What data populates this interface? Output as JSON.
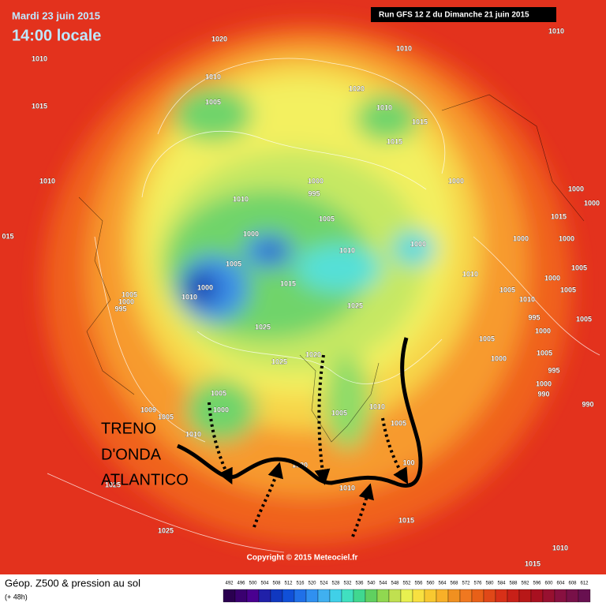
{
  "header": {
    "date": "Mardi 23 juin 2015",
    "time": "14:00 locale",
    "run": "Run GFS 12 Z du Dimanche 21 juin 2015"
  },
  "annotation": [
    "TRENO",
    "D'ONDA",
    "ATLANTICO"
  ],
  "pressure_labels": [
    "1010",
    "1020",
    "1010",
    "1010",
    "1015",
    "1010",
    "1005",
    "1020",
    "1010",
    "1015",
    "1015",
    "1010",
    "1000",
    "995",
    "1010",
    "1000",
    "1000",
    "1000",
    "1005",
    "1015",
    "015",
    "1000",
    "1000",
    "1000",
    "1000",
    "1010",
    "1005",
    "1000",
    "1015",
    "1010",
    "1005",
    "1000",
    "1005",
    "1000",
    "995",
    "1025",
    "1005",
    "1010",
    "1005",
    "1010",
    "1025",
    "995",
    "1005",
    "1005",
    "1000",
    "1020",
    "1025",
    "1000",
    "1005",
    "995",
    "1000",
    "990",
    "1005",
    "1000",
    "1009",
    "1005",
    "1005",
    "1010",
    "1005",
    "990",
    "1010",
    "1020",
    "1025",
    "1010",
    "100",
    "1015",
    "1025",
    "1010",
    "1015"
  ],
  "footer": {
    "title": "Géop. Z500 & pression au sol",
    "lead": "(+ 48h)",
    "copyright": "Copyright © 2015 Meteociel.fr"
  },
  "legend": {
    "values": [
      492,
      496,
      500,
      504,
      508,
      512,
      516,
      520,
      524,
      528,
      532,
      536,
      540,
      544,
      548,
      552,
      556,
      560,
      564,
      568,
      572,
      576,
      580,
      584,
      588,
      592,
      596,
      600,
      604,
      608,
      612
    ]
  }
}
